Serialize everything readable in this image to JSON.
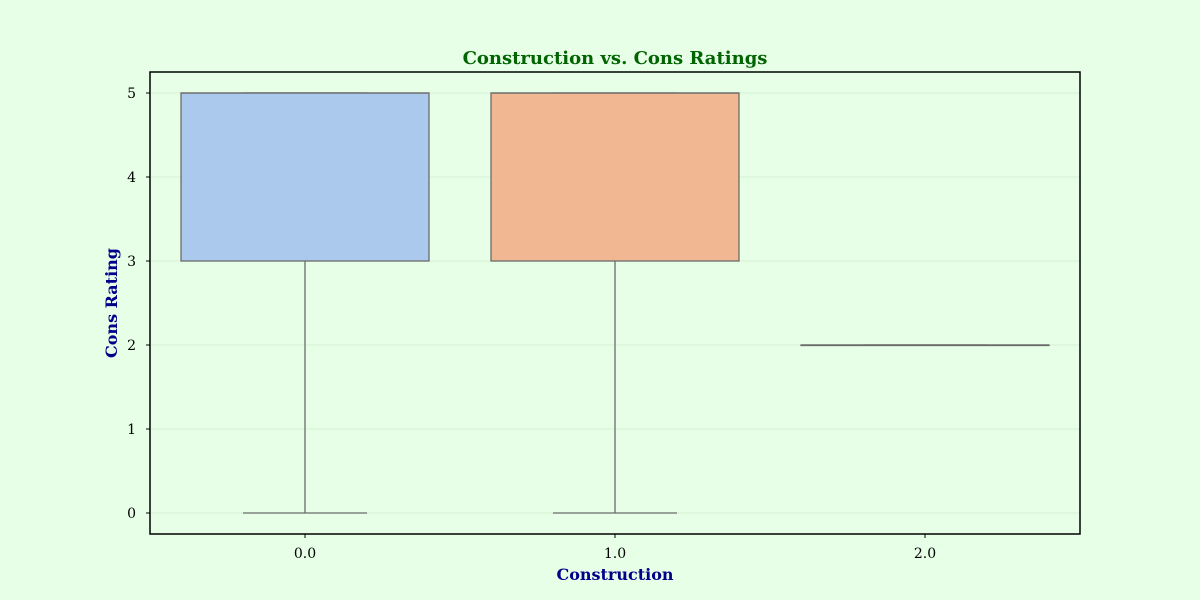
{
  "colors": {
    "background": "#e6ffe6",
    "title": "#006400",
    "axis_label": "#00008b",
    "box_edge": "#6b6b6b",
    "grid": "#d7f0d7"
  },
  "chart_data": {
    "type": "box",
    "title": "Construction vs. Cons Ratings",
    "xlabel": "Construction",
    "ylabel": "Cons Rating",
    "categories": [
      "0.0",
      "1.0",
      "2.0"
    ],
    "ylim": [
      -0.25,
      5.25
    ],
    "yticks": [
      0,
      1,
      2,
      3,
      4,
      5
    ],
    "grid": true,
    "boxes": [
      {
        "category": "0.0",
        "whisker_low": 0,
        "q1": 3,
        "median": 5,
        "q3": 5,
        "whisker_high": 5,
        "color": "#abc9ed"
      },
      {
        "category": "1.0",
        "whisker_low": 0,
        "q1": 3,
        "median": 5,
        "q3": 5,
        "whisker_high": 5,
        "color": "#f1b793"
      },
      {
        "category": "2.0",
        "whisker_low": 2,
        "q1": 2,
        "median": 2,
        "q3": 2,
        "whisker_high": 2,
        "color": "#95d5a2"
      }
    ]
  }
}
